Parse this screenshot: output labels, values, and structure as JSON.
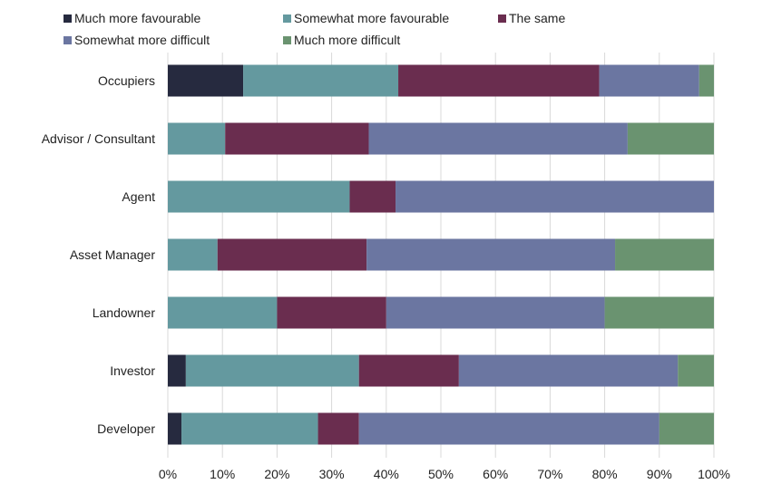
{
  "chart_data": {
    "type": "bar",
    "orientation": "horizontal",
    "stacked": true,
    "legend_position": "top",
    "grid": true,
    "xlim": [
      0,
      100
    ],
    "x_ticks": [
      "0%",
      "10%",
      "20%",
      "30%",
      "40%",
      "50%",
      "60%",
      "70%",
      "80%",
      "90%",
      "100%"
    ],
    "categories": [
      "Occupiers",
      "Advisor / Consultant",
      "Agent",
      "Asset Manager",
      "Landowner",
      "Investor",
      "Developer"
    ],
    "series": [
      {
        "name": "Much more favourable",
        "color": "#262a3f",
        "values": [
          13.8,
          0,
          0,
          0,
          0,
          3.3,
          2.5
        ]
      },
      {
        "name": "Somewhat more favourable",
        "color": "#64999f",
        "values": [
          28.4,
          10.5,
          33.3,
          9.1,
          20,
          31.7,
          25
        ]
      },
      {
        "name": "The same",
        "color": "#6a2d4f",
        "values": [
          36.8,
          26.3,
          8.4,
          27.3,
          20,
          18.3,
          7.5
        ]
      },
      {
        "name": "Somewhat more difficult",
        "color": "#6b76a1",
        "values": [
          18.3,
          47.4,
          58.3,
          45.5,
          40,
          40.1,
          55
        ]
      },
      {
        "name": "Much more difficult",
        "color": "#6a9370",
        "values": [
          2.7,
          15.8,
          0,
          18.1,
          20,
          6.6,
          10
        ]
      }
    ]
  }
}
